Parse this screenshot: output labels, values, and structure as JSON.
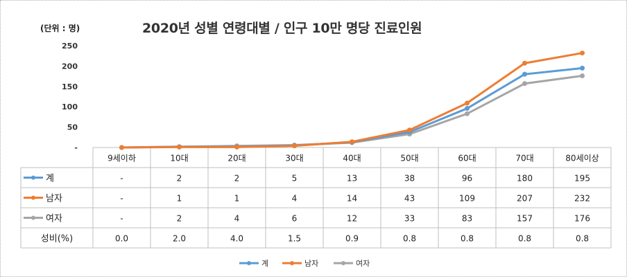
{
  "chart_data": {
    "type": "line",
    "title": "2020년 성별 연령대별 / 인구 10만 명당 진료인원",
    "unit_label": "(단위 : 명)",
    "categories": [
      "9세이하",
      "10대",
      "20대",
      "30대",
      "40대",
      "50대",
      "60대",
      "70대",
      "80세이상"
    ],
    "y_ticks": [
      "-",
      "50",
      "100",
      "150",
      "200",
      "250"
    ],
    "ylim": [
      0,
      250
    ],
    "grid": false,
    "legend_position": "bottom",
    "series": [
      {
        "name": "계",
        "color": "#5B9BD5",
        "values": [
          0,
          2,
          2,
          5,
          13,
          38,
          96,
          180,
          195
        ],
        "labels": [
          "-",
          "2",
          "2",
          "5",
          "13",
          "38",
          "96",
          "180",
          "195"
        ]
      },
      {
        "name": "남자",
        "color": "#ED7D31",
        "values": [
          0,
          1,
          1,
          4,
          14,
          43,
          109,
          207,
          232
        ],
        "labels": [
          "-",
          "1",
          "1",
          "4",
          "14",
          "43",
          "109",
          "207",
          "232"
        ]
      },
      {
        "name": "여자",
        "color": "#A5A5A5",
        "values": [
          0,
          2,
          4,
          6,
          12,
          33,
          83,
          157,
          176
        ],
        "labels": [
          "-",
          "2",
          "4",
          "6",
          "12",
          "33",
          "83",
          "157",
          "176"
        ]
      }
    ],
    "ratio_row": {
      "name": "성비(%)",
      "labels": [
        "0.0",
        "2.0",
        "4.0",
        "1.5",
        "0.9",
        "0.8",
        "0.8",
        "0.8",
        "0.8"
      ]
    }
  }
}
